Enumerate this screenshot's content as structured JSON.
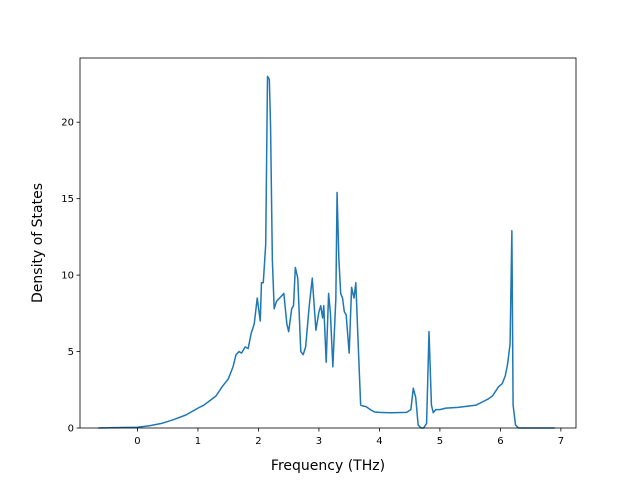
{
  "chart_data": {
    "type": "line",
    "title": "",
    "xlabel": "Frequency (THz)",
    "ylabel": "Density of States",
    "xlim": [
      -0.95,
      7.25
    ],
    "ylim": [
      0,
      24.2
    ],
    "xticks": [
      0,
      1,
      2,
      3,
      4,
      5,
      6,
      7
    ],
    "yticks": [
      0,
      5,
      10,
      15,
      20
    ],
    "grid": false,
    "legend": "none",
    "series": [
      {
        "color": "#1f77b4",
        "x": [
          -0.65,
          0.0,
          0.2,
          0.4,
          0.6,
          0.8,
          1.0,
          1.1,
          1.2,
          1.3,
          1.4,
          1.5,
          1.58,
          1.63,
          1.68,
          1.72,
          1.78,
          1.83,
          1.88,
          1.93,
          1.98,
          2.03,
          2.05,
          2.08,
          2.12,
          2.15,
          2.18,
          2.2,
          2.23,
          2.26,
          2.3,
          2.35,
          2.42,
          2.47,
          2.5,
          2.55,
          2.58,
          2.61,
          2.65,
          2.7,
          2.74,
          2.78,
          2.84,
          2.89,
          2.95,
          3.0,
          3.03,
          3.06,
          3.08,
          3.12,
          3.16,
          3.19,
          3.23,
          3.28,
          3.3,
          3.33,
          3.36,
          3.39,
          3.42,
          3.45,
          3.5,
          3.54,
          3.58,
          3.61,
          3.65,
          3.69,
          3.72,
          3.78,
          3.85,
          3.92,
          4.0,
          4.2,
          4.45,
          4.52,
          4.56,
          4.6,
          4.64,
          4.69,
          4.73,
          4.78,
          4.82,
          4.86,
          4.89,
          4.93,
          5.0,
          5.1,
          5.3,
          5.4,
          5.5,
          5.6,
          5.7,
          5.8,
          5.87,
          5.92,
          5.97,
          6.03,
          6.08,
          6.12,
          6.16,
          6.19,
          6.21,
          6.25,
          6.3,
          6.5,
          6.9
        ],
        "y": [
          0.0,
          0.05,
          0.15,
          0.3,
          0.55,
          0.85,
          1.3,
          1.5,
          1.8,
          2.1,
          2.7,
          3.2,
          4.0,
          4.8,
          5.0,
          4.9,
          5.3,
          5.2,
          6.2,
          6.8,
          8.5,
          7.0,
          9.5,
          9.5,
          12.0,
          23.0,
          22.8,
          19.8,
          11.0,
          7.8,
          8.3,
          8.5,
          8.8,
          6.8,
          6.3,
          7.8,
          8.0,
          10.5,
          9.8,
          5.0,
          4.8,
          5.3,
          8.0,
          9.8,
          6.4,
          7.6,
          8.0,
          7.2,
          8.0,
          4.3,
          8.8,
          7.5,
          4.0,
          8.5,
          15.4,
          11.0,
          8.8,
          8.5,
          7.6,
          7.4,
          4.9,
          9.2,
          8.5,
          9.5,
          5.4,
          1.5,
          1.45,
          1.4,
          1.2,
          1.05,
          1.02,
          1.0,
          1.02,
          1.2,
          2.6,
          2.0,
          0.2,
          0.0,
          0.0,
          0.3,
          6.3,
          1.5,
          1.0,
          1.2,
          1.2,
          1.3,
          1.35,
          1.4,
          1.45,
          1.5,
          1.7,
          1.9,
          2.1,
          2.4,
          2.7,
          2.9,
          3.4,
          4.2,
          5.5,
          12.9,
          1.5,
          0.2,
          0.0,
          0.0,
          0.0
        ]
      }
    ]
  }
}
